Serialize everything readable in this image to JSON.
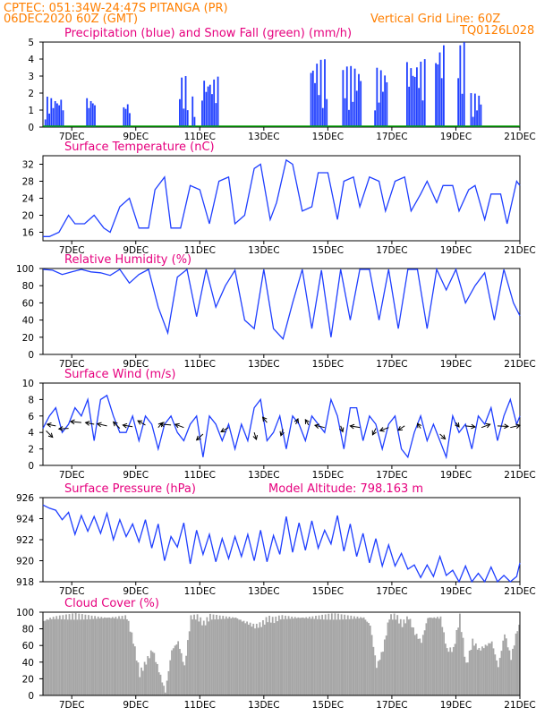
{
  "header": {
    "line1": "CPTEC:   051:34W-24:47S   PITANGA (PR)",
    "line2": "06DEC2020 60Z (GMT)",
    "vgrid": "Vertical Grid Line: 60Z",
    "code": "TQ0126L028"
  },
  "colors": {
    "header": "#ff7f00",
    "title": "#e6007e",
    "series": "#1f3fff",
    "snow": "#00a000",
    "cloud": "#a6a6a6"
  },
  "chart_data": [
    {
      "type": "bar",
      "title": "Precipitation (blue) and Snow Fall (green) (mm/h)",
      "ylim": [
        0,
        5
      ],
      "yticks": [
        0,
        1,
        2,
        3,
        4,
        5
      ],
      "xticks": [
        "7DEC",
        "9DEC",
        "11DEC",
        "13DEC",
        "15DEC",
        "17DEC",
        "19DEC",
        "21DEC"
      ],
      "xrange_days": [
        6.1,
        21.0
      ],
      "bursts": [
        {
          "start": 6.15,
          "end": 6.75,
          "peak": 1.8
        },
        {
          "start": 7.45,
          "end": 7.75,
          "peak": 1.8
        },
        {
          "start": 8.6,
          "end": 8.8,
          "peak": 1.5
        },
        {
          "start": 10.35,
          "end": 10.65,
          "peak": 3.0
        },
        {
          "start": 10.75,
          "end": 10.85,
          "peak": 1.8
        },
        {
          "start": 11.05,
          "end": 11.55,
          "peak": 3.0
        },
        {
          "start": 14.45,
          "end": 14.95,
          "peak": 4.0
        },
        {
          "start": 15.45,
          "end": 16.05,
          "peak": 3.6
        },
        {
          "start": 16.45,
          "end": 16.85,
          "peak": 3.5
        },
        {
          "start": 17.45,
          "end": 18.05,
          "peak": 4.0
        },
        {
          "start": 18.35,
          "end": 18.65,
          "peak": 5.0
        },
        {
          "start": 19.05,
          "end": 19.25,
          "peak": 5.0
        },
        {
          "start": 19.45,
          "end": 19.8,
          "peak": 2.0
        }
      ]
    },
    {
      "type": "line",
      "title": "Surface Temperature (nC)",
      "ylim": [
        14,
        34
      ],
      "yticks": [
        16,
        20,
        24,
        28,
        32
      ],
      "xticks": [
        "7DEC",
        "9DEC",
        "11DEC",
        "13DEC",
        "15DEC",
        "17DEC",
        "19DEC",
        "21DEC"
      ],
      "x": [
        6.1,
        6.3,
        6.6,
        6.9,
        7.1,
        7.4,
        7.7,
        8.0,
        8.2,
        8.5,
        8.8,
        9.1,
        9.4,
        9.6,
        9.9,
        10.1,
        10.4,
        10.7,
        11.0,
        11.3,
        11.6,
        11.9,
        12.1,
        12.4,
        12.7,
        12.9,
        13.2,
        13.4,
        13.7,
        13.9,
        14.2,
        14.5,
        14.7,
        15.0,
        15.3,
        15.5,
        15.8,
        16.0,
        16.3,
        16.6,
        16.8,
        17.1,
        17.4,
        17.6,
        17.9,
        18.1,
        18.4,
        18.6,
        18.9,
        19.1,
        19.4,
        19.6,
        19.9,
        20.1,
        20.4,
        20.6,
        20.9,
        21.0
      ],
      "y": [
        15,
        15,
        16,
        20,
        18,
        18,
        20,
        17,
        16,
        22,
        24,
        17,
        17,
        26,
        29,
        17,
        17,
        27,
        26,
        18,
        28,
        29,
        18,
        20,
        31,
        32,
        19,
        23,
        33,
        32,
        21,
        22,
        30,
        30,
        19,
        28,
        29,
        22,
        29,
        28,
        21,
        28,
        29,
        21,
        25,
        28,
        23,
        27,
        27,
        21,
        26,
        27,
        19,
        25,
        25,
        18,
        28,
        27
      ]
    },
    {
      "type": "line",
      "title": "Relative Humidity (%)",
      "ylim": [
        0,
        100
      ],
      "yticks": [
        0,
        20,
        40,
        60,
        80,
        100
      ],
      "xticks": [
        "7DEC",
        "9DEC",
        "11DEC",
        "13DEC",
        "15DEC",
        "17DEC",
        "19DEC",
        "21DEC"
      ],
      "x": [
        6.1,
        6.4,
        6.7,
        7.0,
        7.3,
        7.6,
        7.9,
        8.2,
        8.5,
        8.8,
        9.1,
        9.4,
        9.7,
        10.0,
        10.3,
        10.6,
        10.9,
        11.2,
        11.5,
        11.8,
        12.1,
        12.4,
        12.7,
        13.0,
        13.3,
        13.6,
        13.9,
        14.2,
        14.5,
        14.8,
        15.1,
        15.4,
        15.7,
        16.0,
        16.3,
        16.6,
        16.9,
        17.2,
        17.5,
        17.8,
        18.1,
        18.4,
        18.7,
        19.0,
        19.3,
        19.6,
        19.9,
        20.2,
        20.5,
        20.8,
        21.0
      ],
      "y": [
        99,
        98,
        93,
        96,
        99,
        96,
        95,
        92,
        99,
        83,
        93,
        99,
        55,
        25,
        90,
        99,
        44,
        99,
        55,
        80,
        98,
        40,
        30,
        99,
        30,
        18,
        60,
        99,
        30,
        98,
        20,
        99,
        40,
        99,
        99,
        40,
        99,
        30,
        99,
        99,
        30,
        99,
        75,
        99,
        60,
        80,
        95,
        40,
        99,
        60,
        45
      ]
    },
    {
      "type": "line",
      "title": "Surface Wind (m/s)",
      "ylim": [
        0,
        10
      ],
      "yticks": [
        0,
        2,
        4,
        6,
        8,
        10
      ],
      "xticks": [
        "7DEC",
        "9DEC",
        "11DEC",
        "13DEC",
        "15DEC",
        "17DEC",
        "19DEC",
        "21DEC"
      ],
      "x": [
        6.1,
        6.3,
        6.5,
        6.7,
        6.9,
        7.1,
        7.3,
        7.5,
        7.7,
        7.9,
        8.1,
        8.3,
        8.5,
        8.7,
        8.9,
        9.1,
        9.3,
        9.5,
        9.7,
        9.9,
        10.1,
        10.3,
        10.5,
        10.7,
        10.9,
        11.1,
        11.3,
        11.5,
        11.7,
        11.9,
        12.1,
        12.3,
        12.5,
        12.7,
        12.9,
        13.1,
        13.3,
        13.5,
        13.7,
        13.9,
        14.1,
        14.3,
        14.5,
        14.7,
        14.9,
        15.1,
        15.3,
        15.5,
        15.7,
        15.9,
        16.1,
        16.3,
        16.5,
        16.7,
        16.9,
        17.1,
        17.3,
        17.5,
        17.7,
        17.9,
        18.1,
        18.3,
        18.5,
        18.7,
        18.9,
        19.1,
        19.3,
        19.5,
        19.7,
        19.9,
        20.1,
        20.3,
        20.5,
        20.7,
        20.9,
        21.0
      ],
      "y": [
        4.5,
        6,
        7,
        4,
        5,
        7,
        6,
        8,
        3,
        8,
        8.5,
        6,
        4,
        4,
        6,
        3,
        6,
        5,
        2,
        5,
        6,
        4,
        3,
        5,
        6,
        1,
        6,
        5,
        3,
        5,
        2,
        5,
        3,
        7,
        8,
        3,
        4,
        6,
        2,
        6,
        5,
        3,
        6,
        5,
        4,
        8,
        6,
        2,
        7,
        7,
        3,
        6,
        5,
        2,
        5,
        6,
        2,
        1,
        4,
        6,
        3,
        5,
        3,
        1,
        6,
        4,
        5,
        2,
        6,
        5,
        7,
        3,
        6,
        8,
        5,
        6
      ],
      "arrows": [
        {
          "x": 6.2,
          "y": 4.2,
          "dx": 0.6,
          "dy": -1.2
        },
        {
          "x": 6.5,
          "y": 4.8,
          "dx": -0.8,
          "dy": 0.3
        },
        {
          "x": 6.9,
          "y": 4.5,
          "dx": -0.9,
          "dy": -0.1
        },
        {
          "x": 7.3,
          "y": 5.2,
          "dx": -1.0,
          "dy": 0.2
        },
        {
          "x": 7.7,
          "y": 5.0,
          "dx": -0.8,
          "dy": 0.3
        },
        {
          "x": 8.1,
          "y": 4.8,
          "dx": -0.9,
          "dy": 0.4
        },
        {
          "x": 8.5,
          "y": 4.5,
          "dx": -0.6,
          "dy": 1.2
        },
        {
          "x": 8.9,
          "y": 4.7,
          "dx": -0.9,
          "dy": 0.3
        },
        {
          "x": 9.3,
          "y": 4.9,
          "dx": -0.7,
          "dy": 0.8
        },
        {
          "x": 9.7,
          "y": 4.6,
          "dx": 0.4,
          "dy": 0.9
        },
        {
          "x": 10.1,
          "y": 4.9,
          "dx": -1.0,
          "dy": 0.2
        },
        {
          "x": 10.5,
          "y": 4.6,
          "dx": -0.8,
          "dy": 0.6
        },
        {
          "x": 11.1,
          "y": 3.8,
          "dx": -0.6,
          "dy": -1.1
        },
        {
          "x": 11.9,
          "y": 4.6,
          "dx": -0.7,
          "dy": -0.8
        },
        {
          "x": 12.7,
          "y": 4.0,
          "dx": 0.2,
          "dy": -1.3
        },
        {
          "x": 13.1,
          "y": 5.2,
          "dx": -0.4,
          "dy": 1.0
        },
        {
          "x": 13.6,
          "y": 4.4,
          "dx": -0.2,
          "dy": -1.2
        },
        {
          "x": 14.0,
          "y": 5.0,
          "dx": 0.2,
          "dy": 1.0
        },
        {
          "x": 14.4,
          "y": 4.9,
          "dx": -0.3,
          "dy": 1.0
        },
        {
          "x": 14.9,
          "y": 4.6,
          "dx": -0.9,
          "dy": 0.4
        },
        {
          "x": 15.4,
          "y": 4.8,
          "dx": 0.2,
          "dy": -1.1
        },
        {
          "x": 16.0,
          "y": 4.6,
          "dx": -0.9,
          "dy": 0.3
        },
        {
          "x": 16.5,
          "y": 4.5,
          "dx": -0.3,
          "dy": -1.2
        },
        {
          "x": 16.9,
          "y": 4.6,
          "dx": -0.8,
          "dy": -0.6
        },
        {
          "x": 17.4,
          "y": 4.8,
          "dx": -0.6,
          "dy": -0.8
        },
        {
          "x": 17.9,
          "y": 4.5,
          "dx": -0.3,
          "dy": 0.9
        },
        {
          "x": 18.5,
          "y": 3.8,
          "dx": 0.5,
          "dy": -0.9
        },
        {
          "x": 19.0,
          "y": 5.2,
          "dx": 0.3,
          "dy": -0.8
        },
        {
          "x": 19.3,
          "y": 4.8,
          "dx": 0.9,
          "dy": -0.2
        },
        {
          "x": 19.8,
          "y": 4.6,
          "dx": 0.8,
          "dy": 0.6
        },
        {
          "x": 20.3,
          "y": 4.8,
          "dx": 1.0,
          "dy": -0.1
        },
        {
          "x": 20.7,
          "y": 4.6,
          "dx": 0.9,
          "dy": 0.4
        }
      ]
    },
    {
      "type": "line",
      "title": "Surface Pressure (hPa)",
      "subtitle": "Model Altitude: 798.163 m",
      "ylim": [
        918,
        926
      ],
      "yticks": [
        918,
        920,
        922,
        924,
        926
      ],
      "xticks": [
        "7DEC",
        "9DEC",
        "11DEC",
        "13DEC",
        "15DEC",
        "17DEC",
        "19DEC",
        "21DEC"
      ],
      "x": [
        6.1,
        6.3,
        6.5,
        6.7,
        6.9,
        7.1,
        7.3,
        7.5,
        7.7,
        7.9,
        8.1,
        8.3,
        8.5,
        8.7,
        8.9,
        9.1,
        9.3,
        9.5,
        9.7,
        9.9,
        10.1,
        10.3,
        10.5,
        10.7,
        10.9,
        11.1,
        11.3,
        11.5,
        11.7,
        11.9,
        12.1,
        12.3,
        12.5,
        12.7,
        12.9,
        13.1,
        13.3,
        13.5,
        13.7,
        13.9,
        14.1,
        14.3,
        14.5,
        14.7,
        14.9,
        15.1,
        15.3,
        15.5,
        15.7,
        15.9,
        16.1,
        16.3,
        16.5,
        16.7,
        16.9,
        17.1,
        17.3,
        17.5,
        17.7,
        17.9,
        18.1,
        18.3,
        18.5,
        18.7,
        18.9,
        19.1,
        19.3,
        19.5,
        19.7,
        19.9,
        20.1,
        20.3,
        20.5,
        20.7,
        20.9,
        21.0
      ],
      "y": [
        925.3,
        925.0,
        924.8,
        923.9,
        924.6,
        922.5,
        924.3,
        922.8,
        924.2,
        922.6,
        924.5,
        922.0,
        923.9,
        922.3,
        923.5,
        921.8,
        923.9,
        921.2,
        923.5,
        920.0,
        922.3,
        921.3,
        923.6,
        919.7,
        922.9,
        920.6,
        922.5,
        919.9,
        922.1,
        920.2,
        922.3,
        920.4,
        922.5,
        920.0,
        922.9,
        919.9,
        922.4,
        920.6,
        924.2,
        920.8,
        923.6,
        921.0,
        923.8,
        921.2,
        922.9,
        921.6,
        924.3,
        920.9,
        923.5,
        920.4,
        922.6,
        919.8,
        922.1,
        919.5,
        921.5,
        919.5,
        920.7,
        919.2,
        919.6,
        918.4,
        919.6,
        918.5,
        920.4,
        918.6,
        919.1,
        917.9,
        919.5,
        917.9,
        918.8,
        917.9,
        919.4,
        918.0,
        918.6,
        917.8,
        918.5,
        919.8
      ]
    },
    {
      "type": "area",
      "title": "Cloud Cover (%)",
      "ylim": [
        0,
        100
      ],
      "yticks": [
        0,
        20,
        40,
        60,
        80,
        100
      ],
      "xticks": [
        "7DEC",
        "9DEC",
        "11DEC",
        "13DEC",
        "15DEC",
        "17DEC",
        "19DEC",
        "21DEC"
      ],
      "x": [
        6.1,
        6.3,
        6.5,
        6.7,
        6.9,
        7.1,
        7.3,
        7.5,
        7.7,
        7.9,
        8.1,
        8.3,
        8.5,
        8.7,
        8.9,
        9.1,
        9.3,
        9.5,
        9.7,
        9.9,
        10.1,
        10.3,
        10.5,
        10.7,
        10.9,
        11.1,
        11.3,
        11.5,
        11.7,
        11.9,
        12.1,
        12.3,
        12.5,
        12.7,
        12.9,
        13.1,
        13.3,
        13.5,
        13.7,
        13.9,
        14.1,
        14.3,
        14.5,
        14.7,
        14.9,
        15.1,
        15.3,
        15.5,
        15.7,
        15.9,
        16.1,
        16.3,
        16.5,
        16.7,
        16.9,
        17.1,
        17.3,
        17.5,
        17.7,
        17.9,
        18.1,
        18.3,
        18.5,
        18.7,
        18.9,
        19.1,
        19.3,
        19.5,
        19.7,
        19.9,
        20.1,
        20.3,
        20.5,
        20.7,
        20.9,
        21.0
      ],
      "y": [
        95,
        98,
        99,
        99,
        99,
        99,
        99,
        99,
        99,
        99,
        99,
        99,
        99,
        99,
        70,
        30,
        45,
        60,
        35,
        10,
        60,
        70,
        40,
        99,
        99,
        90,
        99,
        99,
        99,
        99,
        99,
        95,
        92,
        88,
        90,
        96,
        95,
        99,
        99,
        99,
        99,
        99,
        99,
        99,
        99,
        99,
        99,
        99,
        99,
        99,
        99,
        90,
        40,
        60,
        99,
        99,
        90,
        99,
        80,
        70,
        99,
        99,
        99,
        60,
        60,
        99,
        40,
        70,
        60,
        65,
        70,
        40,
        80,
        50,
        85,
        88
      ]
    }
  ]
}
